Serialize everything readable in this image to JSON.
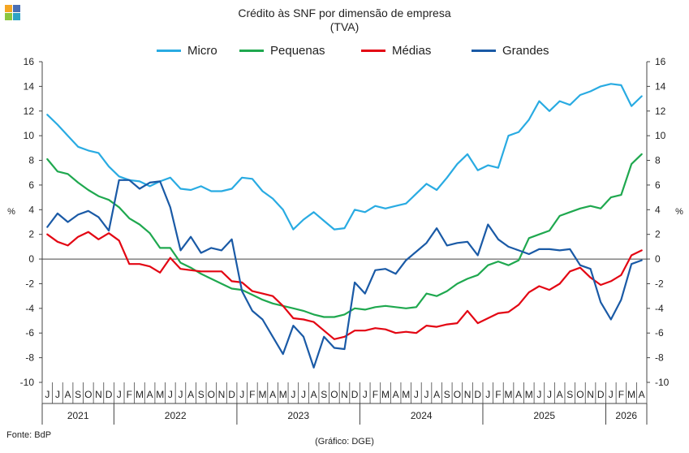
{
  "logo": {
    "colors": [
      "#f5a623",
      "#4a6fb5",
      "#8cc63f",
      "#2ea3c6"
    ]
  },
  "title_line1": "Crédito às SNF por dimensão de empresa",
  "title_line2": "(TVA)",
  "source": "Fonte: BdP",
  "credit": "(Gráfico: DGE)",
  "chart_data": {
    "type": "line",
    "title": "Crédito às SNF por dimensão de empresa (TVA)",
    "ylabel": "%",
    "ylim": [
      -10,
      16
    ],
    "yticks": [
      -10,
      -8,
      -6,
      -4,
      -2,
      0,
      2,
      4,
      6,
      8,
      10,
      12,
      14,
      16
    ],
    "grid": false,
    "legend_position": "top",
    "month_labels": [
      "J",
      "J",
      "A",
      "S",
      "O",
      "N",
      "D",
      "J",
      "F",
      "M",
      "A",
      "M",
      "J",
      "J",
      "A",
      "S",
      "O",
      "N",
      "D",
      "J",
      "F",
      "M",
      "A",
      "M",
      "J",
      "J",
      "A",
      "S",
      "O",
      "N",
      "D",
      "J",
      "F",
      "M",
      "A",
      "M",
      "J",
      "J",
      "A",
      "S",
      "O",
      "N",
      "D",
      "J",
      "F",
      "M",
      "A",
      "M",
      "J",
      "J",
      "A",
      "S",
      "O",
      "N",
      "D",
      "J",
      "F",
      "M",
      "A"
    ],
    "years": [
      {
        "label": "2021",
        "start": 0,
        "end": 7
      },
      {
        "label": "2022",
        "start": 7,
        "end": 19
      },
      {
        "label": "2023",
        "start": 19,
        "end": 31
      },
      {
        "label": "2024",
        "start": 31,
        "end": 43
      },
      {
        "label": "2025",
        "start": 43,
        "end": 55
      },
      {
        "label": "2026",
        "start": 55,
        "end": 59
      }
    ],
    "series": [
      {
        "name": "Micro",
        "color": "#29abe2",
        "values": [
          11.7,
          10.9,
          10.0,
          9.1,
          8.8,
          8.6,
          7.5,
          6.7,
          6.4,
          6.3,
          5.9,
          6.3,
          6.6,
          5.7,
          5.6,
          5.9,
          5.5,
          5.5,
          5.7,
          6.6,
          6.5,
          5.5,
          4.9,
          4.0,
          2.4,
          3.2,
          3.8,
          3.1,
          2.4,
          2.5,
          4.0,
          3.8,
          4.3,
          4.1,
          4.3,
          4.5,
          5.3,
          6.1,
          5.6,
          6.6,
          7.7,
          8.5,
          7.2,
          7.6,
          7.4,
          10.0,
          10.3,
          11.3,
          12.8,
          12.0,
          12.8,
          12.5,
          13.3,
          13.6,
          14.0,
          14.2,
          14.1,
          12.4,
          13.2
        ]
      },
      {
        "name": "Pequenas",
        "color": "#1fa84f",
        "values": [
          8.1,
          7.1,
          6.9,
          6.2,
          5.6,
          5.1,
          4.8,
          4.2,
          3.3,
          2.8,
          2.1,
          0.9,
          0.9,
          -0.3,
          -0.7,
          -1.2,
          -1.6,
          -2.0,
          -2.4,
          -2.5,
          -2.9,
          -3.3,
          -3.6,
          -3.8,
          -4.0,
          -4.2,
          -4.5,
          -4.7,
          -4.7,
          -4.5,
          -4.0,
          -4.1,
          -3.9,
          -3.8,
          -3.9,
          -4.0,
          -3.9,
          -2.8,
          -3.0,
          -2.6,
          -2.0,
          -1.6,
          -1.3,
          -0.5,
          -0.2,
          -0.5,
          -0.1,
          1.7,
          2.0,
          2.3,
          3.5,
          3.8,
          4.1,
          4.3,
          4.1,
          5.0,
          5.2,
          7.7,
          8.5
        ]
      },
      {
        "name": "Médias",
        "color": "#e30613",
        "values": [
          2.0,
          1.4,
          1.1,
          1.8,
          2.2,
          1.6,
          2.1,
          1.5,
          -0.4,
          -0.4,
          -0.6,
          -1.1,
          0.1,
          -0.8,
          -0.9,
          -1.0,
          -1.0,
          -1.0,
          -1.8,
          -1.9,
          -2.6,
          -2.8,
          -3.0,
          -3.8,
          -4.8,
          -4.9,
          -5.1,
          -5.8,
          -6.5,
          -6.3,
          -5.8,
          -5.8,
          -5.6,
          -5.7,
          -6.0,
          -5.9,
          -6.0,
          -5.4,
          -5.5,
          -5.3,
          -5.2,
          -4.2,
          -5.2,
          -4.8,
          -4.4,
          -4.3,
          -3.7,
          -2.7,
          -2.2,
          -2.5,
          -2.0,
          -1.0,
          -0.7,
          -1.5,
          -2.1,
          -1.8,
          -1.3,
          0.3,
          0.7
        ]
      },
      {
        "name": "Grandes",
        "color": "#1a5aa6",
        "values": [
          2.6,
          3.7,
          3.0,
          3.6,
          3.9,
          3.4,
          2.3,
          6.4,
          6.4,
          5.7,
          6.2,
          6.3,
          4.2,
          0.7,
          1.8,
          0.5,
          0.9,
          0.7,
          1.6,
          -2.6,
          -4.2,
          -4.9,
          -6.3,
          -7.7,
          -5.4,
          -6.3,
          -8.8,
          -6.3,
          -7.2,
          -7.3,
          -1.9,
          -2.8,
          -0.9,
          -0.8,
          -1.2,
          -0.1,
          0.6,
          1.3,
          2.5,
          1.1,
          1.3,
          1.4,
          0.3,
          2.8,
          1.6,
          1.0,
          0.7,
          0.4,
          0.8,
          0.8,
          0.7,
          0.8,
          -0.5,
          -0.8,
          -3.5,
          -4.9,
          -3.3,
          -0.4,
          -0.1
        ]
      }
    ]
  }
}
